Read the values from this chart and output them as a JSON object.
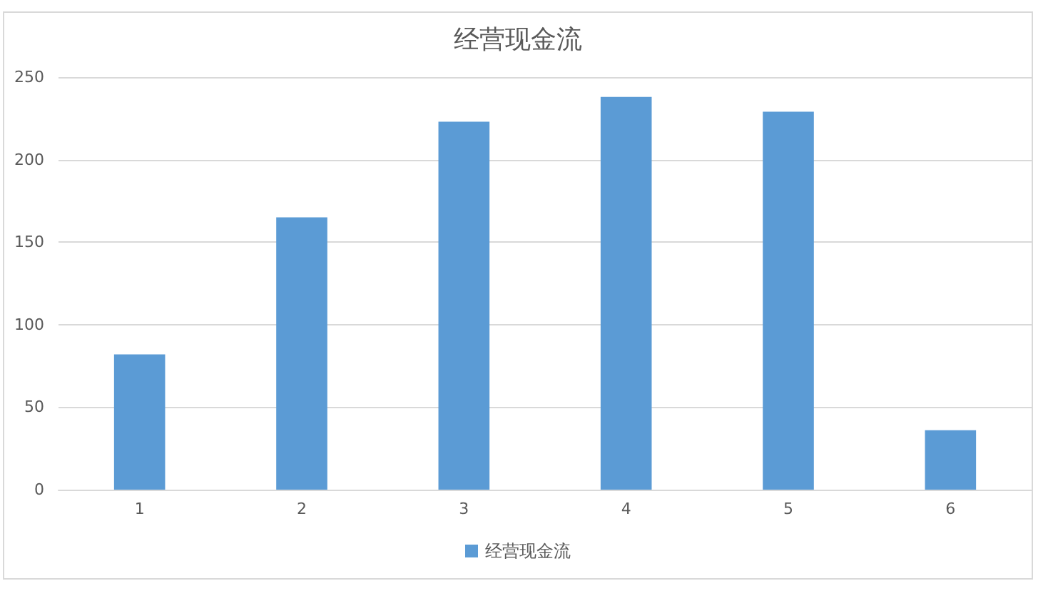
{
  "chart_data": {
    "type": "bar",
    "title": "经营现金流",
    "categories": [
      "1",
      "2",
      "3",
      "4",
      "5",
      "6"
    ],
    "series": [
      {
        "name": "经营现金流",
        "color": "#5b9bd5",
        "values": [
          82,
          165,
          223,
          238,
          229,
          36
        ]
      }
    ],
    "ylim": [
      0,
      250
    ],
    "yticks": [
      0,
      50,
      100,
      150,
      200,
      250
    ],
    "grid": "y",
    "legend": "bottom"
  }
}
